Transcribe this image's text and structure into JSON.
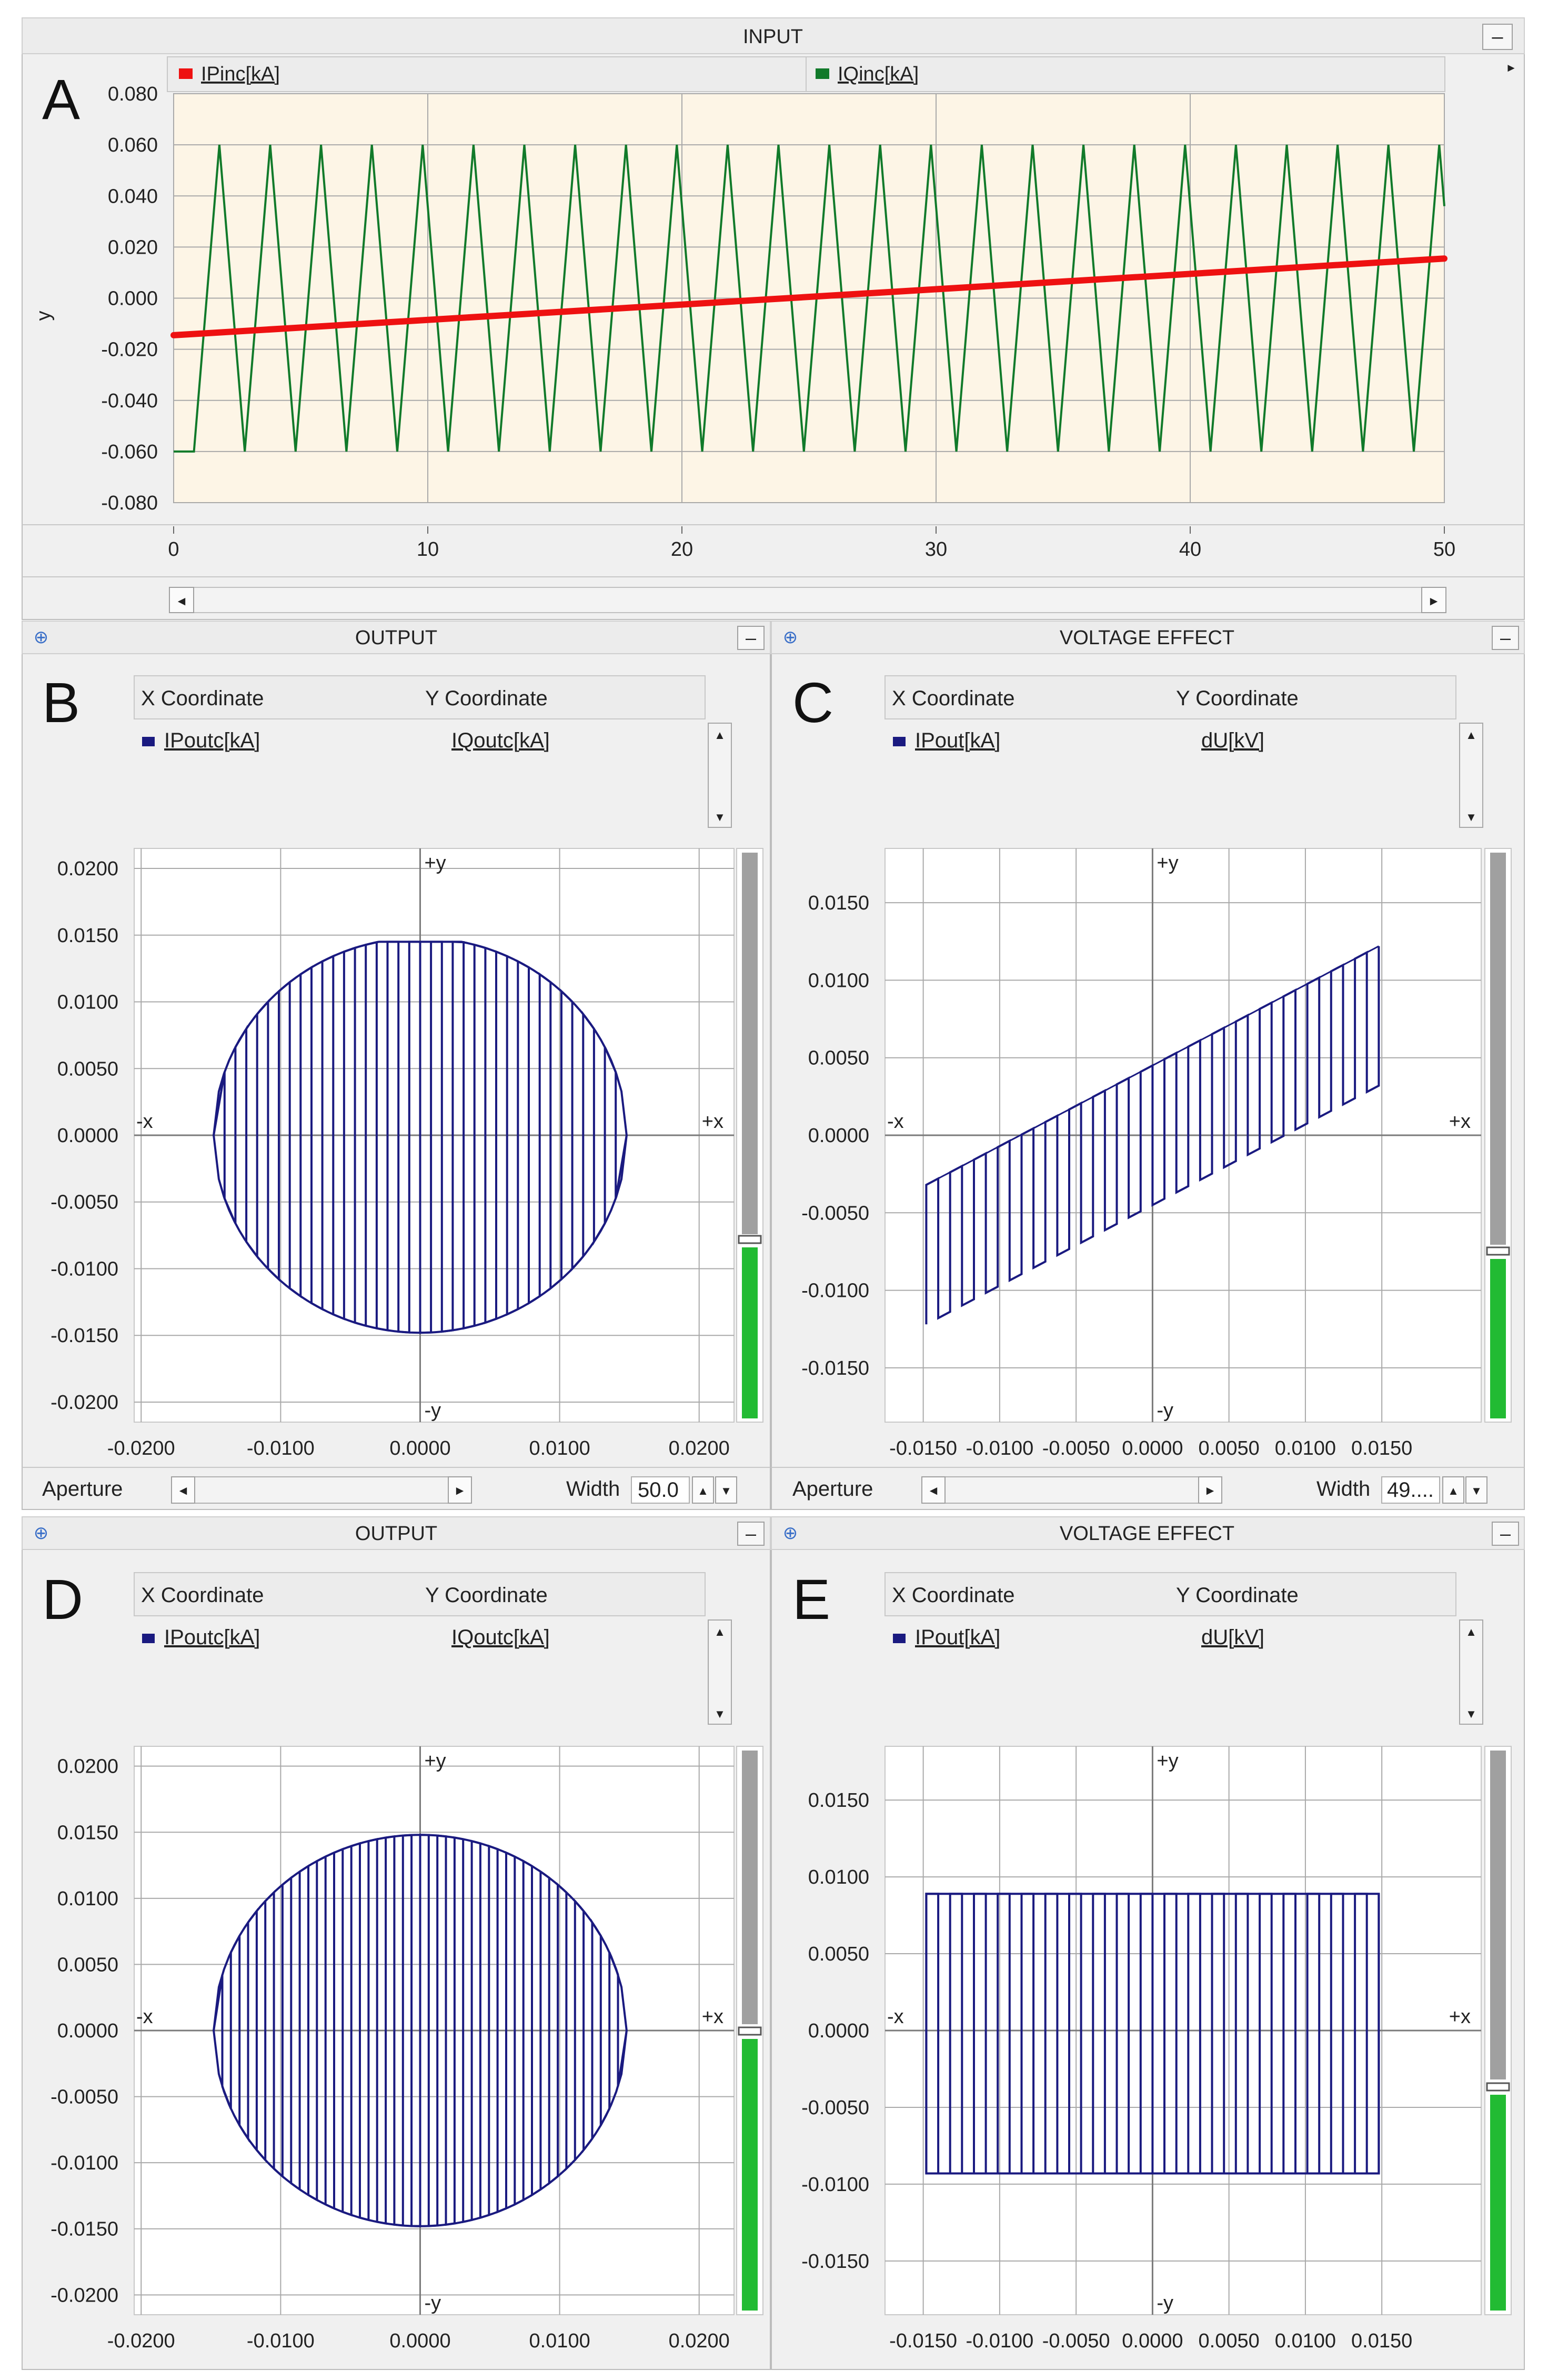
{
  "figure_labels": {
    "a": "A",
    "b": "B",
    "c": "C",
    "d": "D",
    "e": "E"
  },
  "panel_titles": {
    "input": "INPUT",
    "output": "OUTPUT",
    "voltage": "VOLTAGE EFFECT"
  },
  "xy_common": {
    "x_coord_header": "X Coordinate",
    "y_coord_header": "Y Coordinate",
    "plus_y": "+y",
    "minus_y": "-y",
    "plus_x": "+x",
    "minus_x": "-x",
    "aperture_label": "Aperture",
    "width_label": "Width"
  },
  "controls": {
    "minimize_glyph": "–",
    "scroll_left_glyph": "◄",
    "scroll_right_glyph": "►",
    "up_glyph": "▲",
    "down_glyph": "▼",
    "width_value_b": "50.0",
    "width_value_c": "49...."
  },
  "colors": {
    "ipinc": "#ee1111",
    "iqinc": "#117a2a",
    "curve": "#1a1a80",
    "plot_bg_input": "#fdf5e6",
    "header_bg": "#ececec",
    "grid": "#a9a9a9",
    "meter_green": "#22bb33",
    "meter_gray": "#a0a0a0"
  },
  "chart_data": [
    {
      "id": "A",
      "type": "line",
      "title": "INPUT",
      "xlabel": "",
      "ylabel": "y",
      "xlim": [
        0,
        50
      ],
      "ylim": [
        -0.08,
        0.08
      ],
      "x_ticks": [
        0,
        10,
        20,
        30,
        40,
        50
      ],
      "x_tick_labels": [
        "0",
        "10",
        "20",
        "30",
        "40",
        "50"
      ],
      "y_ticks": [
        0.08,
        0.06,
        0.04,
        0.02,
        0.0,
        -0.02,
        -0.04,
        -0.06,
        -0.08
      ],
      "y_tick_labels": [
        "0.080",
        "0.060",
        "0.040",
        "0.020",
        "0.000",
        "-0.020",
        "-0.040",
        "-0.060",
        "-0.080"
      ],
      "legend": [
        "IPinc[kA]",
        "IQinc[kA]"
      ],
      "series": [
        {
          "name": "IPinc[kA]",
          "kind": "ramp",
          "x": [
            0,
            50
          ],
          "y": [
            -0.0145,
            0.0155
          ]
        },
        {
          "name": "IQinc[kA]",
          "kind": "triangle_wave",
          "x_start": 0,
          "x_end": 50,
          "amplitude": 0.06,
          "period": 2,
          "first_peak_x": 1.8
        }
      ]
    },
    {
      "id": "B",
      "type": "scatter",
      "title": "OUTPUT",
      "x_series": "IPoutc[kA]",
      "y_series": "IQoutc[kA]",
      "xlim": [
        -0.0205,
        0.0225
      ],
      "ylim": [
        -0.0215,
        0.0215
      ],
      "x_ticks": [
        -0.02,
        -0.01,
        0.0,
        0.01,
        0.02
      ],
      "x_tick_labels": [
        "-0.0200",
        "-0.0100",
        "0.0000",
        "0.0100",
        "0.0200"
      ],
      "y_ticks": [
        0.02,
        0.015,
        0.01,
        0.005,
        0.0,
        -0.005,
        -0.01,
        -0.015,
        -0.02
      ],
      "y_tick_labels": [
        "0.0200",
        "0.0150",
        "0.0100",
        "0.0050",
        "0.0000",
        "-0.0050",
        "-0.0100",
        "-0.0150",
        "-0.0200"
      ],
      "curve": {
        "shape": "clipped_disk",
        "radius": 0.0148,
        "x_min": -0.0148,
        "x_max": 0.0148,
        "y_min": -0.0148,
        "y_max": 0.0145,
        "stripe_count": 38
      }
    },
    {
      "id": "C",
      "type": "scatter",
      "title": "VOLTAGE EFFECT",
      "x_series": "IPout[kA]",
      "y_series": "dU[kV]",
      "xlim": [
        -0.0175,
        0.0215
      ],
      "ylim": [
        -0.0185,
        0.0185
      ],
      "x_ticks": [
        -0.015,
        -0.01,
        -0.005,
        0.0,
        0.005,
        0.01,
        0.015
      ],
      "x_tick_labels": [
        "-0.0150",
        "-0.0100",
        "-0.0050",
        "0.0000",
        "0.0050",
        "0.0100",
        "0.0150"
      ],
      "y_ticks": [
        0.015,
        0.01,
        0.005,
        0.0,
        -0.005,
        -0.01,
        -0.015
      ],
      "y_tick_labels": [
        "0.0150",
        "0.0100",
        "0.0050",
        "0.0000",
        "-0.0050",
        "-0.0100",
        "-0.0150"
      ],
      "curve": {
        "shape": "tilted_band",
        "x_min": -0.0148,
        "x_max": 0.0148,
        "slope": 0.52,
        "half_width": 0.0045,
        "stripe_count": 38
      }
    },
    {
      "id": "D",
      "type": "scatter",
      "title": "OUTPUT",
      "x_series": "IPoutc[kA]",
      "y_series": "IQoutc[kA]",
      "xlim": [
        -0.0205,
        0.0225
      ],
      "ylim": [
        -0.0215,
        0.0215
      ],
      "x_ticks": [
        -0.02,
        -0.01,
        0.0,
        0.01,
        0.02
      ],
      "x_tick_labels": [
        "-0.0200",
        "-0.0100",
        "0.0000",
        "0.0100",
        "0.0200"
      ],
      "y_ticks": [
        0.02,
        0.015,
        0.01,
        0.005,
        0.0,
        -0.005,
        -0.01,
        -0.015,
        -0.02
      ],
      "y_tick_labels": [
        "0.0200",
        "0.0150",
        "0.0100",
        "0.0050",
        "0.0000",
        "-0.0050",
        "-0.0100",
        "-0.0150",
        "-0.0200"
      ],
      "curve": {
        "shape": "disk",
        "radius": 0.0148,
        "x_min": -0.0148,
        "x_max": 0.0148,
        "y_min": -0.0148,
        "y_max": 0.0148,
        "stripe_count": 48
      }
    },
    {
      "id": "E",
      "type": "scatter",
      "title": "VOLTAGE EFFECT",
      "x_series": "IPout[kA]",
      "y_series": "dU[kV]",
      "xlim": [
        -0.0175,
        0.0215
      ],
      "ylim": [
        -0.0185,
        0.0185
      ],
      "x_ticks": [
        -0.015,
        -0.01,
        -0.005,
        0.0,
        0.005,
        0.01,
        0.015
      ],
      "x_tick_labels": [
        "-0.0150",
        "-0.0100",
        "-0.0050",
        "0.0000",
        "0.0050",
        "0.0100",
        "0.0150"
      ],
      "y_ticks": [
        0.015,
        0.01,
        0.005,
        0.0,
        -0.005,
        -0.01,
        -0.015
      ],
      "y_tick_labels": [
        "0.0150",
        "0.0100",
        "0.0050",
        "0.0000",
        "-0.0050",
        "-0.0100",
        "-0.0150"
      ],
      "curve": {
        "shape": "rectangle",
        "x_min": -0.0148,
        "x_max": 0.0148,
        "y_min": -0.0093,
        "y_max": 0.0089,
        "stripe_count": 38
      }
    }
  ]
}
